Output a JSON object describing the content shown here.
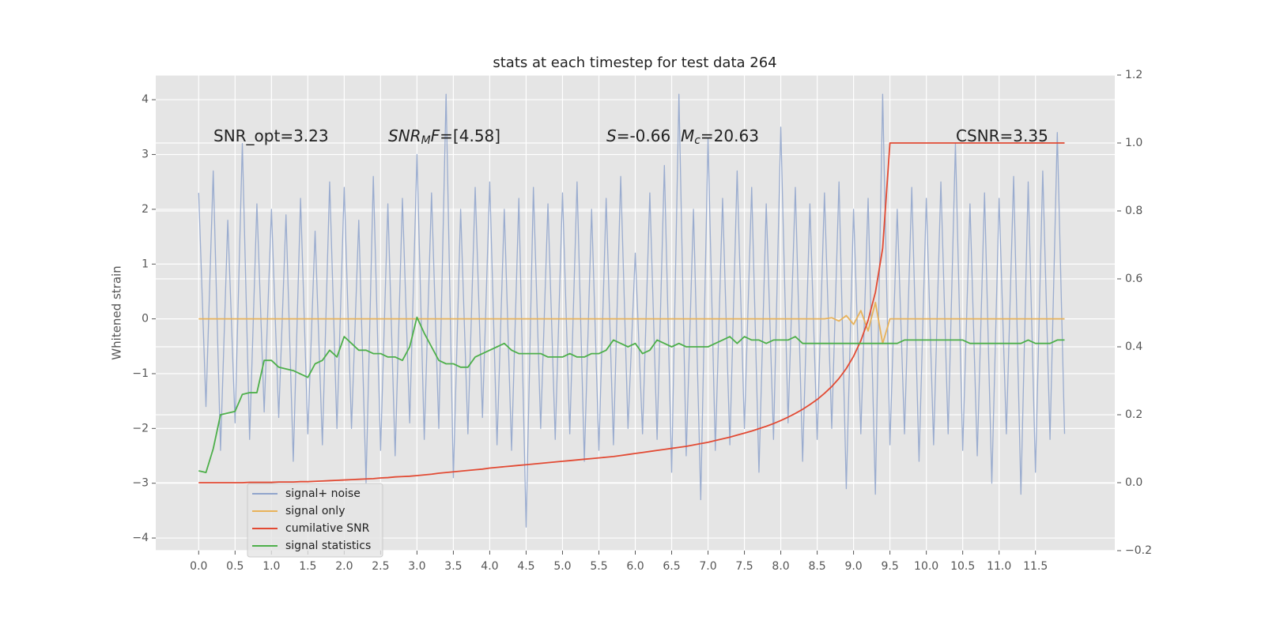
{
  "chart_data": {
    "type": "line",
    "title": "stats at each timestep for test data 264",
    "ylabel": "Whitened strain",
    "annotations": [
      [
        "SNR_opt=3.23"
      ],
      [
        "SNR",
        "M",
        "F",
        "=[4.58]"
      ],
      [
        "S",
        "=-0.66  ",
        "M",
        "c",
        "=20.63"
      ],
      [
        "CSNR=3.35"
      ]
    ],
    "grid": true,
    "legend": "lower left",
    "xlim": [
      -0.59,
      12.59
    ],
    "ylim": [
      -4.23,
      4.45
    ],
    "y2lim": [
      -0.2,
      1.2
    ],
    "xticks": [
      {
        "value": 0,
        "label": "0.0"
      },
      0.5,
      {
        "value": 1,
        "label": "1.0"
      },
      1.5,
      {
        "value": 2,
        "label": "2.0"
      },
      2.5,
      {
        "value": 3,
        "label": "3.0"
      },
      3.5,
      {
        "value": 4,
        "label": "4.0"
      },
      4.5,
      {
        "value": 5,
        "label": "5.0"
      },
      5.5,
      {
        "value": 6,
        "label": "6.0"
      },
      6.5,
      {
        "value": 7,
        "label": "7.0"
      },
      7.5,
      {
        "value": 8,
        "label": "8.0"
      },
      8.5,
      {
        "value": 9,
        "label": "9.0"
      },
      9.5,
      {
        "value": 10,
        "label": "10.0"
      },
      10.5,
      {
        "value": 11,
        "label": "11.0"
      },
      11.5
    ],
    "yticks": [
      {
        "value": -4,
        "label": "−4"
      },
      {
        "value": -3,
        "label": "−3"
      },
      {
        "value": -2,
        "label": "−2"
      },
      {
        "value": -1,
        "label": "−1"
      },
      0,
      1,
      2,
      3,
      4
    ],
    "y2ticks": [
      {
        "value": -0.2,
        "label": "−0.2"
      },
      {
        "value": 0,
        "label": "0.0"
      },
      0.2,
      0.4,
      0.6,
      0.8,
      {
        "value": 1,
        "label": "1.0"
      },
      1.2
    ],
    "x": [
      0,
      0.1,
      0.2,
      0.3,
      0.4,
      0.5,
      0.6,
      0.7,
      0.8,
      0.9,
      1,
      1.1,
      1.2,
      1.3,
      1.4,
      1.5,
      1.6,
      1.7,
      1.8,
      1.9,
      2,
      2.1,
      2.2,
      2.3,
      2.4,
      2.5,
      2.6,
      2.7,
      2.8,
      2.9,
      3,
      3.1,
      3.2,
      3.3,
      3.4,
      3.5,
      3.6,
      3.7,
      3.8,
      3.9,
      4,
      4.1,
      4.2,
      4.3,
      4.4,
      4.5,
      4.6,
      4.7,
      4.8,
      4.9,
      5,
      5.1,
      5.2,
      5.3,
      5.4,
      5.5,
      5.6,
      5.7,
      5.8,
      5.9,
      6,
      6.1,
      6.2,
      6.3,
      6.4,
      6.5,
      6.6,
      6.7,
      6.8,
      6.9,
      7,
      7.1,
      7.2,
      7.3,
      7.4,
      7.5,
      7.6,
      7.7,
      7.8,
      7.9,
      8,
      8.1,
      8.2,
      8.3,
      8.4,
      8.5,
      8.6,
      8.7,
      8.8,
      8.9,
      9,
      9.1,
      9.2,
      9.3,
      9.4,
      9.5,
      9.6,
      9.7,
      9.8,
      9.9,
      10,
      10.1,
      10.2,
      10.3,
      10.4,
      10.5,
      10.6,
      10.7,
      10.8,
      10.9,
      11,
      11.1,
      11.2,
      11.3,
      11.4,
      11.5,
      11.6,
      11.7,
      11.8,
      11.9
    ],
    "series": [
      {
        "name": "signal+ noise",
        "color": "#91a5cc",
        "values": [
          2.3,
          -1.6,
          2.7,
          -2.4,
          1.8,
          -1.9,
          3.2,
          -2.2,
          2.1,
          -1.7,
          2.0,
          -1.8,
          1.9,
          -2.6,
          2.2,
          -2.1,
          1.6,
          -2.3,
          2.5,
          -2.0,
          2.4,
          -2.0,
          1.8,
          -3.0,
          2.6,
          -2.4,
          2.1,
          -2.5,
          2.2,
          -1.9,
          3.0,
          -2.2,
          2.3,
          -2.0,
          4.1,
          -2.9,
          2.0,
          -2.1,
          2.4,
          -1.8,
          2.5,
          -2.3,
          2.0,
          -2.4,
          2.2,
          -3.8,
          2.4,
          -2.0,
          2.1,
          -2.2,
          2.3,
          -2.1,
          2.5,
          -2.6,
          2.0,
          -2.4,
          2.2,
          -2.3,
          2.6,
          -2.0,
          1.2,
          -2.1,
          2.3,
          -2.2,
          2.8,
          -2.8,
          4.1,
          -2.5,
          2.0,
          -3.3,
          3.3,
          -2.4,
          2.2,
          -2.3,
          2.7,
          -2.0,
          2.4,
          -2.8,
          2.1,
          -2.2,
          3.5,
          -1.9,
          2.4,
          -2.6,
          2.1,
          -2.2,
          2.3,
          -2.0,
          2.5,
          -3.1,
          2.0,
          -2.1,
          2.2,
          -3.2,
          4.1,
          -2.3,
          2.0,
          -2.1,
          2.4,
          -2.6,
          2.2,
          -2.3,
          2.5,
          -2.1,
          3.2,
          -2.4,
          2.1,
          -2.5,
          2.3,
          -3.0,
          2.2,
          -2.1,
          2.6,
          -3.2,
          2.5,
          -2.8,
          2.7,
          -2.2,
          3.4,
          -2.1
        ]
      },
      {
        "name": "signal only",
        "color": "#e8b25a",
        "values": [
          0,
          0,
          0,
          0,
          0,
          0,
          0,
          0,
          0,
          0,
          0,
          0,
          0,
          0,
          0,
          0,
          0,
          0,
          0,
          0,
          0,
          0,
          0,
          0,
          0,
          0,
          0,
          0,
          0,
          0,
          0,
          0,
          0,
          0,
          0,
          0,
          0,
          0,
          0,
          0,
          0,
          0,
          0,
          0,
          0,
          0,
          0,
          0,
          0,
          0,
          0,
          0,
          0,
          0,
          0,
          0,
          0,
          0,
          0,
          0,
          0,
          0,
          0,
          0,
          0,
          0,
          0,
          0,
          0,
          0,
          0,
          0,
          0,
          0,
          0,
          0,
          0,
          0,
          0,
          0,
          0,
          0,
          0,
          0,
          0,
          0,
          0,
          0.02,
          -0.04,
          0.06,
          -0.1,
          0.15,
          -0.22,
          0.3,
          -0.45,
          0,
          0,
          0,
          0,
          0,
          0,
          0,
          0,
          0,
          0,
          0,
          0,
          0,
          0,
          0,
          0,
          0,
          0,
          0,
          0,
          0,
          0,
          0,
          0,
          0
        ]
      },
      {
        "name": "cumilative SNR",
        "color": "#e24a33",
        "axis": "y2",
        "values": [
          0,
          0,
          0,
          0,
          0,
          0,
          0,
          0.001,
          0.001,
          0.001,
          0.001,
          0.002,
          0.002,
          0.002,
          0.003,
          0.003,
          0.004,
          0.005,
          0.006,
          0.007,
          0.008,
          0.009,
          0.01,
          0.011,
          0.012,
          0.014,
          0.015,
          0.017,
          0.018,
          0.019,
          0.021,
          0.023,
          0.025,
          0.028,
          0.03,
          0.032,
          0.034,
          0.036,
          0.038,
          0.04,
          0.043,
          0.045,
          0.047,
          0.049,
          0.051,
          0.053,
          0.055,
          0.057,
          0.059,
          0.061,
          0.063,
          0.065,
          0.067,
          0.069,
          0.071,
          0.073,
          0.075,
          0.077,
          0.08,
          0.083,
          0.086,
          0.089,
          0.092,
          0.095,
          0.098,
          0.101,
          0.104,
          0.107,
          0.111,
          0.115,
          0.119,
          0.124,
          0.129,
          0.134,
          0.14,
          0.146,
          0.152,
          0.159,
          0.166,
          0.174,
          0.183,
          0.193,
          0.204,
          0.216,
          0.23,
          0.245,
          0.263,
          0.283,
          0.307,
          0.336,
          0.372,
          0.418,
          0.478,
          0.56,
          0.69,
          1,
          1,
          1,
          1,
          1,
          1,
          1,
          1,
          1,
          1,
          1,
          1,
          1,
          1,
          1,
          1,
          1,
          1,
          1,
          1,
          1,
          1,
          1,
          1,
          1
        ]
      },
      {
        "name": "signal statistics",
        "color": "#4daf4a",
        "axis": "y2",
        "values": [
          0.035,
          0.03,
          0.1,
          0.2,
          0.205,
          0.21,
          0.26,
          0.265,
          0.265,
          0.36,
          0.36,
          0.34,
          0.335,
          0.33,
          0.32,
          0.31,
          0.35,
          0.36,
          0.39,
          0.37,
          0.43,
          0.41,
          0.39,
          0.39,
          0.38,
          0.38,
          0.37,
          0.37,
          0.36,
          0.4,
          0.487,
          0.44,
          0.4,
          0.36,
          0.35,
          0.35,
          0.34,
          0.34,
          0.37,
          0.38,
          0.39,
          0.4,
          0.41,
          0.39,
          0.38,
          0.38,
          0.38,
          0.38,
          0.37,
          0.37,
          0.37,
          0.38,
          0.37,
          0.37,
          0.38,
          0.38,
          0.39,
          0.42,
          0.41,
          0.4,
          0.41,
          0.38,
          0.39,
          0.42,
          0.41,
          0.4,
          0.41,
          0.4,
          0.4,
          0.4,
          0.4,
          0.41,
          0.42,
          0.43,
          0.41,
          0.43,
          0.42,
          0.42,
          0.41,
          0.42,
          0.42,
          0.42,
          0.43,
          0.41,
          0.41,
          0.41,
          0.41,
          0.41,
          0.41,
          0.41,
          0.41,
          0.41,
          0.41,
          0.41,
          0.41,
          0.41,
          0.41,
          0.42,
          0.42,
          0.42,
          0.42,
          0.42,
          0.42,
          0.42,
          0.42,
          0.42,
          0.41,
          0.41,
          0.41,
          0.41,
          0.41,
          0.41,
          0.41,
          0.41,
          0.42,
          0.41,
          0.41,
          0.41,
          0.42,
          0.42
        ]
      }
    ]
  }
}
